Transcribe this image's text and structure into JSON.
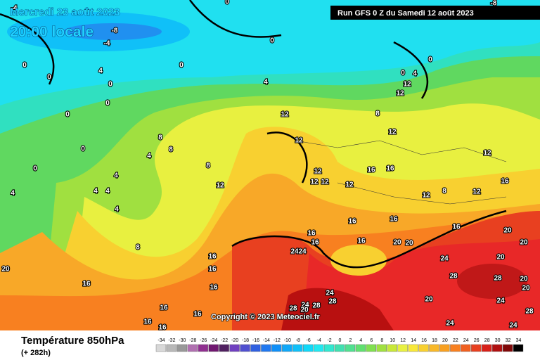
{
  "header": {
    "date": "Mercredi 23 août 2023",
    "time": "20:00 locale",
    "run": "Run GFS 0 Z du Samedi 12 août 2023"
  },
  "copyright": "Copyright © 2023 Meteociel.fr",
  "footer": {
    "title": "Température 850hPa",
    "lead": "(+ 282h)"
  },
  "legend": {
    "ticks": [
      -34,
      -32,
      -30,
      -28,
      -26,
      -24,
      -22,
      -20,
      -18,
      -16,
      -14,
      -12,
      -10,
      -8,
      -6,
      -4,
      -2,
      0,
      2,
      4,
      6,
      8,
      10,
      12,
      14,
      16,
      18,
      20,
      22,
      24,
      26,
      28,
      30,
      32,
      34
    ],
    "colors": [
      "#d8d8d8",
      "#b8b8b8",
      "#989898",
      "#b070b0",
      "#903090",
      "#701870",
      "#502060",
      "#7040c0",
      "#5050d0",
      "#3060e0",
      "#2078f0",
      "#1090f8",
      "#10a8f8",
      "#10c0f8",
      "#10d8f8",
      "#20e8f0",
      "#30e8d0",
      "#40e0b0",
      "#50e090",
      "#60e070",
      "#80e050",
      "#a0e040",
      "#c8e838",
      "#e8f040",
      "#f8e838",
      "#f8d030",
      "#f8b828",
      "#f8a020",
      "#f88020",
      "#f06020",
      "#e84020",
      "#d82018",
      "#b01010",
      "#800808",
      "#000000"
    ]
  },
  "contour_labels": [
    -4,
    -8,
    -4,
    0,
    0,
    0,
    0,
    4,
    0,
    0,
    0,
    0,
    0,
    4,
    12,
    12,
    8,
    8,
    4,
    8,
    12,
    4,
    4,
    4,
    4,
    4,
    8,
    12,
    12,
    12,
    12,
    16,
    12,
    12,
    16,
    12,
    8,
    12,
    16,
    16,
    16,
    16,
    16,
    20,
    20,
    20,
    20,
    24,
    24,
    24,
    20,
    28,
    28,
    20,
    20,
    24,
    20,
    20,
    16,
    16,
    16,
    16,
    16,
    16,
    16,
    16,
    24,
    24,
    28,
    28,
    20,
    28,
    24,
    24,
    28,
    12,
    12,
    8,
    16,
    16,
    0,
    4,
    0,
    -8,
    0
  ]
}
